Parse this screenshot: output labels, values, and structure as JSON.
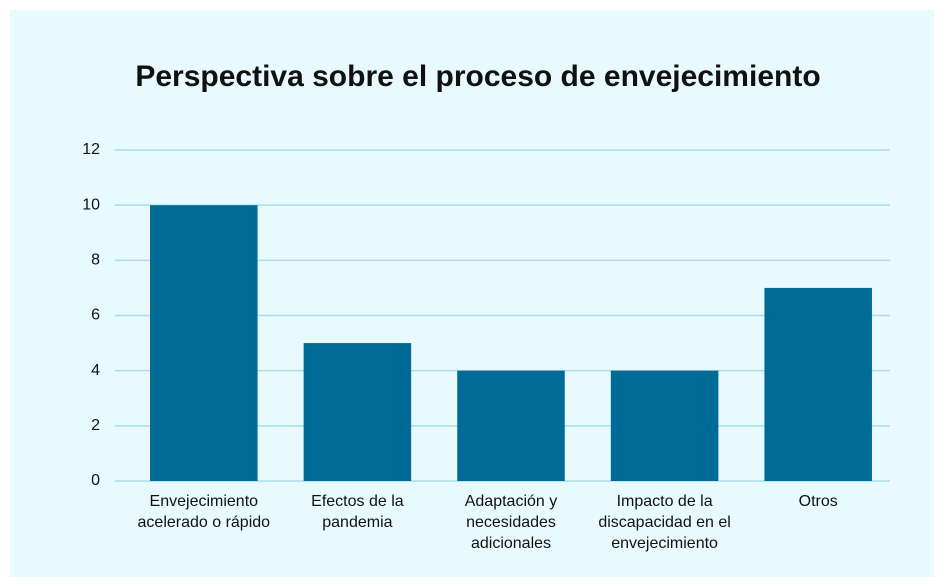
{
  "chart_data": {
    "type": "bar",
    "title": "Perspectiva sobre el proceso de envejecimiento",
    "categories": [
      "Envejecimiento acelerado o rápido",
      "Efectos de la pandemia",
      "Adaptación y necesidades adicionales",
      "Impacto de la discapacidad en el envejecimiento",
      "Otros"
    ],
    "values": [
      10,
      5,
      4,
      4,
      7
    ],
    "color": "#006b96",
    "ylim": [
      0,
      12
    ],
    "yticks": [
      0,
      2,
      4,
      6,
      8,
      10,
      12
    ],
    "grid": true
  }
}
